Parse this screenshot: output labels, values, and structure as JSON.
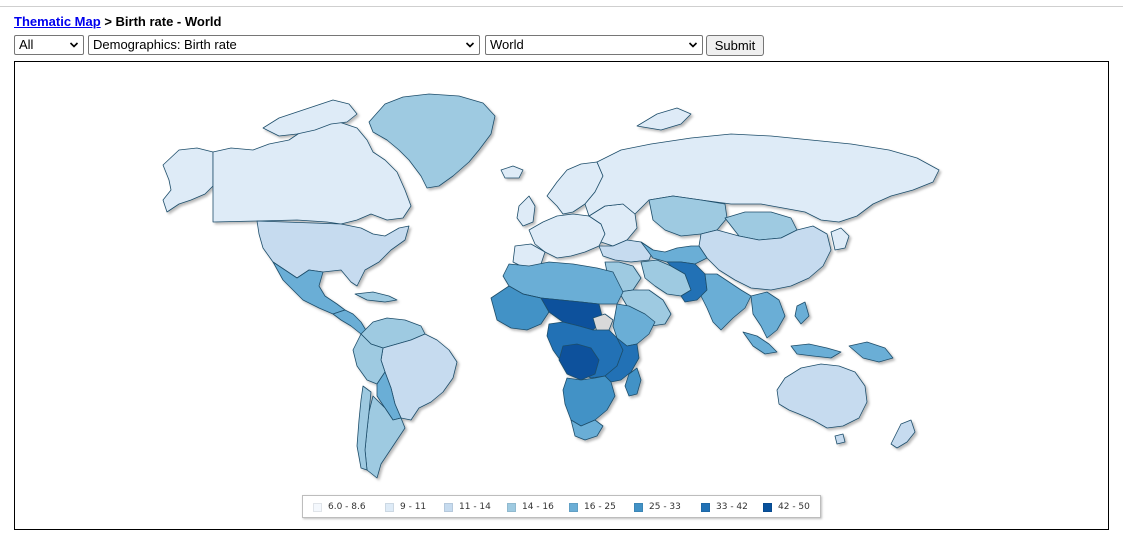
{
  "breadcrumb": {
    "link_label": "Thematic Map",
    "current": "> Birth rate - World"
  },
  "controls": {
    "category_select": "All",
    "indicator_select": "Demographics: Birth rate",
    "region_select": "World",
    "submit_label": "Submit"
  },
  "map": {
    "title": "",
    "colors": {
      "c1": "#f4f8fd",
      "c2": "#deebf7",
      "c3": "#c6dbef",
      "c4": "#9ecae1",
      "c5": "#6baed6",
      "c6": "#4292c6",
      "c7": "#2171b5",
      "c8": "#08519c",
      "nodata": "#d9d9d9",
      "border": "#1f4e6b"
    },
    "legend": [
      {
        "label": "6.0 - 8.6",
        "color": "#f4f8fd"
      },
      {
        "label": "9 - 11",
        "color": "#deebf7"
      },
      {
        "label": "11 - 14",
        "color": "#c6dbef"
      },
      {
        "label": "14 - 16",
        "color": "#9ecae1"
      },
      {
        "label": "16 - 25",
        "color": "#6baed6"
      },
      {
        "label": "25 - 33",
        "color": "#4292c6"
      },
      {
        "label": "33 - 42",
        "color": "#2171b5"
      },
      {
        "label": "42 - 50",
        "color": "#08519c"
      }
    ]
  }
}
